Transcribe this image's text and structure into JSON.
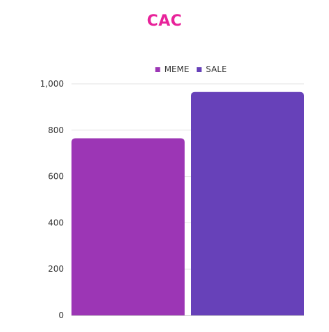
{
  "chart_data": {
    "type": "bar",
    "title": "CAC",
    "categories": [
      ""
    ],
    "series": [
      {
        "name": "MEME",
        "values": [
          765
        ],
        "color": "#9c36b5"
      },
      {
        "name": "SALE",
        "values": [
          965
        ],
        "color": "#6741b9"
      }
    ],
    "ylim": [
      0,
      1000
    ],
    "yticks": [
      0,
      200,
      400,
      600,
      800,
      1000
    ],
    "ytick_labels": [
      "0",
      "200",
      "400",
      "600",
      "800",
      "1,000"
    ],
    "grid": true,
    "legend_position": "top-center",
    "title_color": "#e8239a"
  }
}
